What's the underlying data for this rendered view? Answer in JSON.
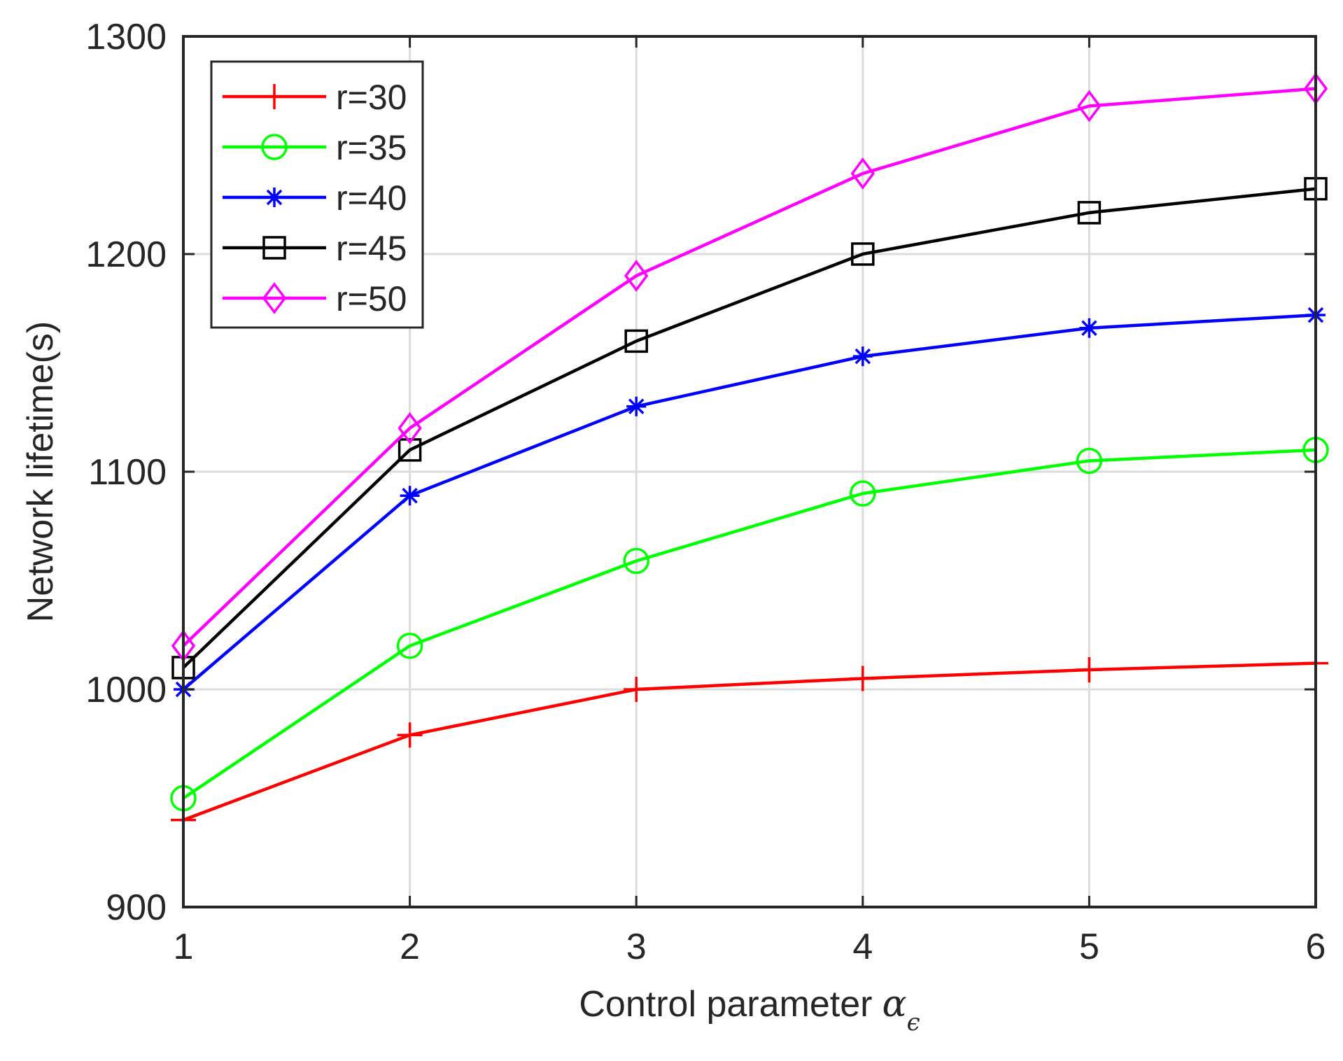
{
  "chart_data": {
    "type": "line",
    "title": "",
    "xlabel": "Control parameter",
    "xlabel_symbol": "α",
    "xlabel_subscript": "ϵ",
    "ylabel": "Network lifetime(s)",
    "x": [
      1,
      2,
      3,
      4,
      5,
      6
    ],
    "xlim": [
      1,
      6
    ],
    "ylim": [
      900,
      1300
    ],
    "xticks": [
      "1",
      "2",
      "3",
      "4",
      "5",
      "6"
    ],
    "yticks": [
      "900",
      "1000",
      "1100",
      "1200",
      "1300"
    ],
    "grid": true,
    "legend_position": "top-left",
    "series": [
      {
        "name": "r=30",
        "color": "#ff0000",
        "marker": "plus",
        "values": [
          940,
          979,
          1000,
          1005,
          1009,
          1012
        ]
      },
      {
        "name": "r=35",
        "color": "#00ff00",
        "marker": "circle",
        "values": [
          950,
          1020,
          1059,
          1090,
          1105,
          1110
        ]
      },
      {
        "name": "r=40",
        "color": "#0000ff",
        "marker": "star",
        "values": [
          1000,
          1089,
          1130,
          1153,
          1166,
          1172
        ]
      },
      {
        "name": "r=45",
        "color": "#000000",
        "marker": "square",
        "values": [
          1010,
          1110,
          1160,
          1200,
          1219,
          1230
        ]
      },
      {
        "name": "r=50",
        "color": "#ff00ff",
        "marker": "diamond",
        "values": [
          1020,
          1120,
          1190,
          1237,
          1268,
          1276
        ]
      }
    ]
  }
}
